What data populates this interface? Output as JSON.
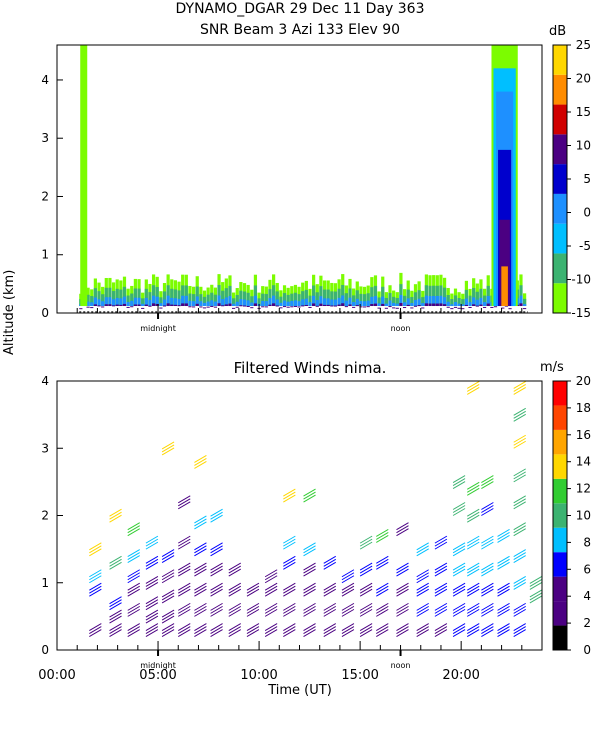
{
  "header": {
    "line1": "DYNAMO_DGAR  29 Dec 11 Day 363",
    "line2": "SNR Beam 3 Azi 133 Elev 90"
  },
  "winds_title": "Filtered Winds nima.",
  "y_axis_label": "Altitude (km)",
  "x_axis_label": "Time (UT)",
  "chart_data": [
    {
      "type": "heatmap",
      "title": "SNR Beam 3 Azi 133 Elev 90",
      "ylabel": "Altitude (km)",
      "ylim": [
        0,
        4.6
      ],
      "yticks": [
        "0",
        "1",
        "2",
        "3",
        "4"
      ],
      "xlim": [
        0,
        24
      ],
      "xtick_annotations": [
        "midnight",
        "noon"
      ],
      "colorbar": {
        "unit": "dB",
        "labels": [
          "-15",
          "-10",
          "-5",
          "0",
          "5",
          "10",
          "15",
          "20",
          "25"
        ],
        "colors": [
          "#7CFC00",
          "#3CB371",
          "#00BFFF",
          "#1E90FF",
          "#0000CD",
          "#4B0082",
          "#D00000",
          "#FF8C00",
          "#FFD700"
        ]
      },
      "features": {
        "boundary_layer_top_km": 0.6,
        "convective_plume_hours": [
          21.5,
          22.8
        ],
        "convective_plume_top_km": 4.6
      }
    },
    {
      "type": "scatter",
      "title": "Filtered Winds nima.",
      "xlabel": "Time (UT)",
      "ylabel": "Altitude (km)",
      "ylim": [
        0,
        4
      ],
      "xlim": [
        0,
        24
      ],
      "yticks": [
        "0",
        "1",
        "2",
        "3",
        "4"
      ],
      "xticks": [
        "00:00",
        "05:00",
        "10:00",
        "15:00",
        "20:00"
      ],
      "xtick_annotations": [
        "midnight",
        "noon"
      ],
      "colorbar": {
        "unit": "m/s",
        "labels": [
          "0",
          "2",
          "4",
          "6",
          "8",
          "10",
          "12",
          "14",
          "16",
          "18",
          "20"
        ],
        "colors": [
          "#000000",
          "#4B0082",
          "#4B0082",
          "#0000FF",
          "#00BFFF",
          "#3CB371",
          "#32CD32",
          "#FFD700",
          "#FFA500",
          "#FF4500",
          "#FF0000"
        ]
      },
      "wind_barbs": [
        {
          "t": 1.6,
          "alt": [
            0.2,
            0.8,
            1.0,
            1.4
          ],
          "speed": [
            5,
            7,
            9,
            15
          ]
        },
        {
          "t": 2.6,
          "alt": [
            0.2,
            0.4,
            0.6,
            1.2,
            1.9
          ],
          "speed": [
            4,
            5,
            6,
            11,
            15
          ]
        },
        {
          "t": 3.5,
          "alt": [
            0.2,
            0.5,
            0.8,
            1.0,
            1.3,
            1.7
          ],
          "speed": [
            4,
            4,
            5,
            7,
            9,
            13
          ]
        },
        {
          "t": 4.4,
          "alt": [
            0.2,
            0.4,
            0.6,
            0.9,
            1.2,
            1.5
          ],
          "speed": [
            3,
            4,
            4,
            5,
            7,
            9
          ]
        },
        {
          "t": 5.2,
          "alt": [
            0.2,
            0.4,
            0.7,
            1.0,
            1.3,
            2.9
          ],
          "speed": [
            3,
            3,
            4,
            5,
            6,
            14
          ]
        },
        {
          "t": 6.0,
          "alt": [
            0.2,
            0.5,
            0.8,
            1.1,
            1.5,
            2.1
          ],
          "speed": [
            3,
            3,
            4,
            4,
            5,
            3
          ]
        },
        {
          "t": 6.8,
          "alt": [
            0.2,
            0.5,
            0.8,
            1.1,
            1.4,
            1.8,
            2.7
          ],
          "speed": [
            3,
            3,
            4,
            5,
            6,
            8,
            15
          ]
        },
        {
          "t": 7.6,
          "alt": [
            0.2,
            0.5,
            0.8,
            1.1,
            1.4,
            1.9
          ],
          "speed": [
            3,
            3,
            4,
            4,
            6,
            9
          ]
        },
        {
          "t": 8.5,
          "alt": [
            0.2,
            0.5,
            0.8,
            1.1
          ],
          "speed": [
            3,
            3,
            4,
            4
          ]
        },
        {
          "t": 9.4,
          "alt": [
            0.2,
            0.5,
            0.8
          ],
          "speed": [
            3,
            4,
            4
          ]
        },
        {
          "t": 10.3,
          "alt": [
            0.2,
            0.5,
            0.8,
            1.0
          ],
          "speed": [
            3,
            4,
            4,
            5
          ]
        },
        {
          "t": 11.2,
          "alt": [
            0.2,
            0.5,
            0.8,
            1.2,
            1.5,
            2.2
          ],
          "speed": [
            3,
            4,
            5,
            7,
            9,
            14
          ]
        },
        {
          "t": 12.2,
          "alt": [
            0.2,
            0.5,
            0.8,
            1.1,
            1.4,
            2.2
          ],
          "speed": [
            3,
            4,
            4,
            5,
            8,
            13
          ]
        },
        {
          "t": 13.2,
          "alt": [
            0.2,
            0.5,
            0.8,
            1.2
          ],
          "speed": [
            3,
            4,
            5,
            7
          ]
        },
        {
          "t": 14.1,
          "alt": [
            0.2,
            0.5,
            0.8,
            1.0
          ],
          "speed": [
            4,
            4,
            5,
            6
          ]
        },
        {
          "t": 15.0,
          "alt": [
            0.2,
            0.5,
            0.8,
            1.1,
            1.5
          ],
          "speed": [
            4,
            5,
            5,
            7,
            10
          ]
        },
        {
          "t": 15.8,
          "alt": [
            0.2,
            0.5,
            0.8,
            1.2,
            1.6
          ],
          "speed": [
            4,
            5,
            6,
            7,
            12
          ]
        },
        {
          "t": 16.8,
          "alt": [
            0.2,
            0.5,
            0.8,
            1.1,
            1.7
          ],
          "speed": [
            4,
            5,
            5,
            6,
            4
          ]
        },
        {
          "t": 17.8,
          "alt": [
            0.2,
            0.5,
            0.8,
            1.0,
            1.4
          ],
          "speed": [
            5,
            6,
            6,
            7,
            8
          ]
        },
        {
          "t": 18.7,
          "alt": [
            0.2,
            0.5,
            0.8,
            1.1,
            1.5
          ],
          "speed": [
            5,
            6,
            6,
            7,
            7
          ]
        },
        {
          "t": 19.6,
          "alt": [
            0.2,
            0.5,
            0.8,
            1.1,
            1.4,
            2.0,
            2.4
          ],
          "speed": [
            6,
            6,
            7,
            8,
            9,
            10,
            11
          ]
        },
        {
          "t": 20.3,
          "alt": [
            0.2,
            0.5,
            0.8,
            1.1,
            1.5,
            1.9,
            2.3,
            3.8
          ],
          "speed": [
            6,
            6,
            7,
            8,
            9,
            10,
            12,
            15
          ]
        },
        {
          "t": 21.0,
          "alt": [
            0.2,
            0.5,
            0.8,
            1.1,
            1.5,
            2.0,
            2.4
          ],
          "speed": [
            6,
            7,
            7,
            8,
            9,
            7,
            13
          ]
        },
        {
          "t": 21.8,
          "alt": [
            0.2,
            0.5,
            0.8,
            1.2,
            1.6
          ],
          "speed": [
            6,
            7,
            7,
            8,
            9
          ]
        },
        {
          "t": 22.6,
          "alt": [
            0.2,
            0.5,
            0.9,
            1.3,
            1.7,
            2.1,
            2.5,
            3.0,
            3.4,
            3.8
          ],
          "speed": [
            6,
            7,
            8,
            9,
            10,
            10,
            11,
            15,
            11,
            15
          ]
        },
        {
          "t": 23.4,
          "alt": [
            0.7,
            0.9
          ],
          "speed": [
            10,
            11
          ]
        }
      ]
    }
  ]
}
